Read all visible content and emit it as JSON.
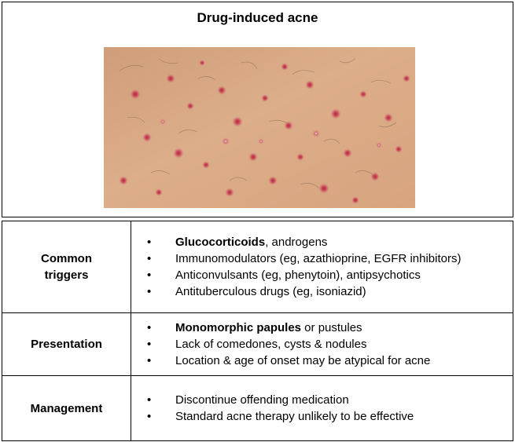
{
  "title": "Drug-induced acne",
  "image": {
    "subject": "photo-skin-papules",
    "colors": {
      "skin": "#d8a77f",
      "lesion": "#c2374a"
    }
  },
  "rows": [
    {
      "label_line1": "Common",
      "label_line2": "triggers",
      "items": [
        {
          "bold": "Glucocorticoids",
          "text": ", androgens"
        },
        {
          "bold": "",
          "text": "Immunomodulators (eg, azathioprine, EGFR inhibitors)"
        },
        {
          "bold": "",
          "text": "Anticonvulsants (eg, phenytoin), antipsychotics"
        },
        {
          "bold": "",
          "text": "Antituberculous drugs (eg, isoniazid)"
        }
      ]
    },
    {
      "label_line1": "Presentation",
      "items": [
        {
          "bold": "Monomorphic papules",
          "text": " or pustules"
        },
        {
          "bold": "",
          "text": "Lack of comedones, cysts & nodules"
        },
        {
          "bold": "",
          "text": "Location & age of onset may be atypical for acne"
        }
      ]
    },
    {
      "label_line1": "Management",
      "items": [
        {
          "bold": "",
          "text": "Discontinue offending medication"
        },
        {
          "bold": "",
          "text": "Standard acne therapy unlikely to be effective"
        }
      ]
    }
  ]
}
